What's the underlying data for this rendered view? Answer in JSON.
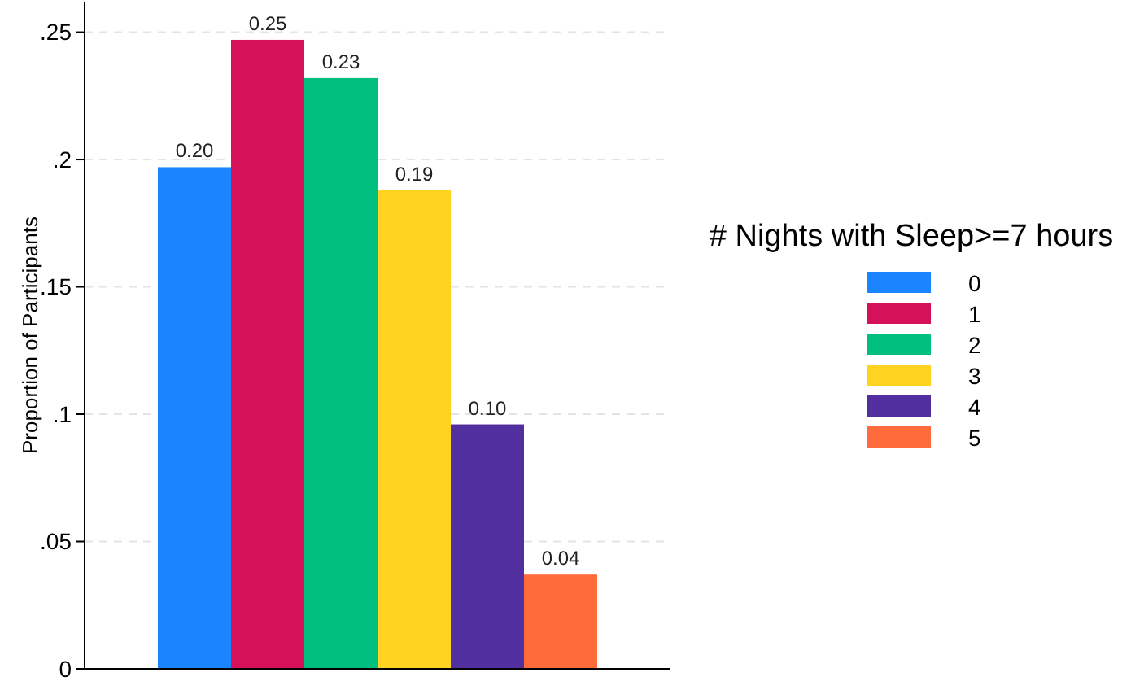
{
  "chart_data": {
    "type": "bar",
    "ylabel": "Proportion of Participants",
    "legend_title": "# Nights with Sleep>=7 hours",
    "categories": [
      null
    ],
    "series": [
      {
        "name": "0",
        "color": "#1a85ff",
        "values": [
          0.197
        ],
        "value_labels": [
          "0.20"
        ]
      },
      {
        "name": "1",
        "color": "#d41159",
        "values": [
          0.247
        ],
        "value_labels": [
          "0.25"
        ]
      },
      {
        "name": "2",
        "color": "#00bf7f",
        "values": [
          0.232
        ],
        "value_labels": [
          "0.23"
        ]
      },
      {
        "name": "3",
        "color": "#ffd320",
        "values": [
          0.188
        ],
        "value_labels": [
          "0.19"
        ]
      },
      {
        "name": "4",
        "color": "#512f9e",
        "values": [
          0.096
        ],
        "value_labels": [
          "0.10"
        ]
      },
      {
        "name": "5",
        "color": "#ff6b3a",
        "values": [
          0.037
        ],
        "value_labels": [
          "0.04"
        ]
      }
    ],
    "ylim": [
      0,
      0.262
    ],
    "yticks": [
      {
        "value": 0,
        "label": "0"
      },
      {
        "value": 0.05,
        "label": ".05"
      },
      {
        "value": 0.1,
        "label": ".1"
      },
      {
        "value": 0.15,
        "label": ".15"
      },
      {
        "value": 0.2,
        "label": ".2"
      },
      {
        "value": 0.25,
        "label": ".25"
      }
    ],
    "grid": "y",
    "legend": "right"
  }
}
